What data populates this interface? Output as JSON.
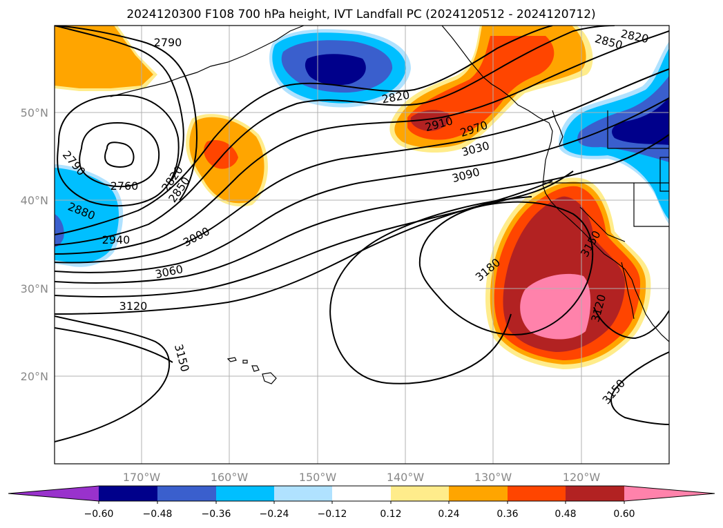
{
  "title": "2024120300 F108 700 hPa height, IVT Landfall PC (2024120512 - 2024120712)",
  "map": {
    "lat_labels": [
      "50°N",
      "40°N",
      "30°N",
      "20°N"
    ],
    "lon_labels": [
      "170°W",
      "160°W",
      "150°W",
      "140°W",
      "130°W",
      "120°W"
    ],
    "contour_labels": {
      "c2790a": "2790",
      "c2790b": "2790",
      "c2760": "2760",
      "c2880": "2880",
      "c2940": "2940",
      "c2820a": "2820",
      "c2850a": "2850",
      "c3000": "3000",
      "c3060": "3060",
      "c3120a": "3120",
      "c3150a": "3150",
      "c2820b": "2820",
      "c2910": "2910",
      "c2970": "2970",
      "c3030": "3030",
      "c3090": "3090",
      "c3180": "3180",
      "c3150b": "3150",
      "c3120b": "3120",
      "c3150c": "3150",
      "c2820c": "2820",
      "c2850b": "2850"
    }
  },
  "colorbar": {
    "ticks": [
      "−0.60",
      "−0.48",
      "−0.36",
      "−0.24",
      "−0.12",
      "0.12",
      "0.24",
      "0.36",
      "0.48",
      "0.60"
    ],
    "colors": [
      "#9932cc",
      "#00008b",
      "#3a5fcd",
      "#00bfff",
      "#b0e2ff",
      "#ffffff",
      "#ffec8b",
      "#ffa500",
      "#ff4500",
      "#b22222",
      "#ff82ab"
    ]
  }
}
